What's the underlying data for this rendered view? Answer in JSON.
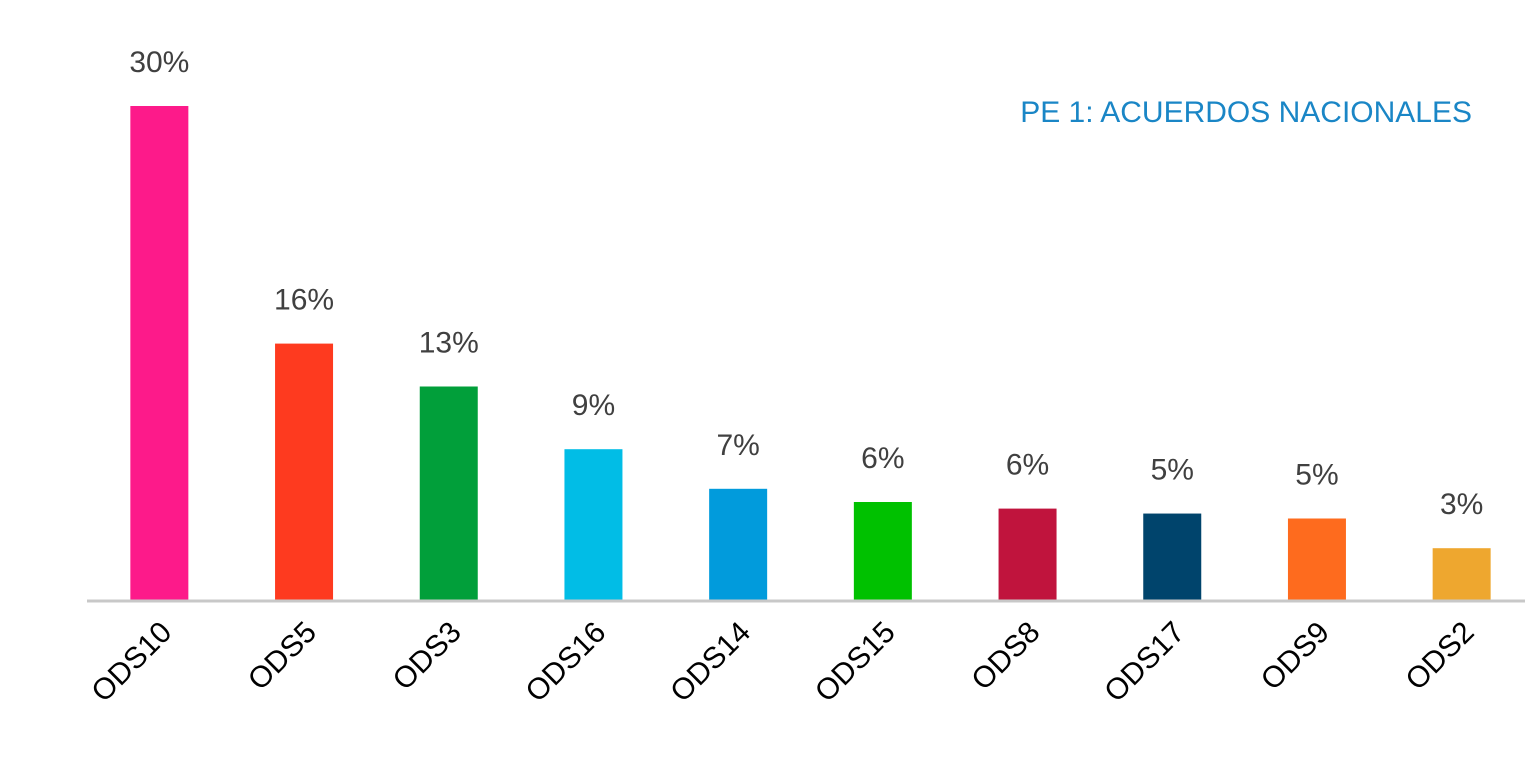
{
  "chart_data": {
    "type": "bar",
    "title": "PE 1: ACUERDOS NACIONALES",
    "categories": [
      "ODS10",
      "ODS5",
      "ODS3",
      "ODS16",
      "ODS14",
      "ODS15",
      "ODS8",
      "ODS17",
      "ODS9",
      "ODS2"
    ],
    "values": [
      30,
      15.6,
      13,
      9.2,
      6.8,
      6,
      5.6,
      5.3,
      5,
      3.2
    ],
    "value_labels": [
      "30%",
      "16%",
      "13%",
      "9%",
      "7%",
      "6%",
      "6%",
      "5%",
      "5%",
      "3%"
    ],
    "colors": [
      "#fd1a8a",
      "#fe3a1f",
      "#019f3a",
      "#01bde6",
      "#019bdc",
      "#00c100",
      "#c0143d",
      "#00446c",
      "#fe6b1e",
      "#eea72f"
    ],
    "ylim": [
      0,
      30
    ]
  }
}
